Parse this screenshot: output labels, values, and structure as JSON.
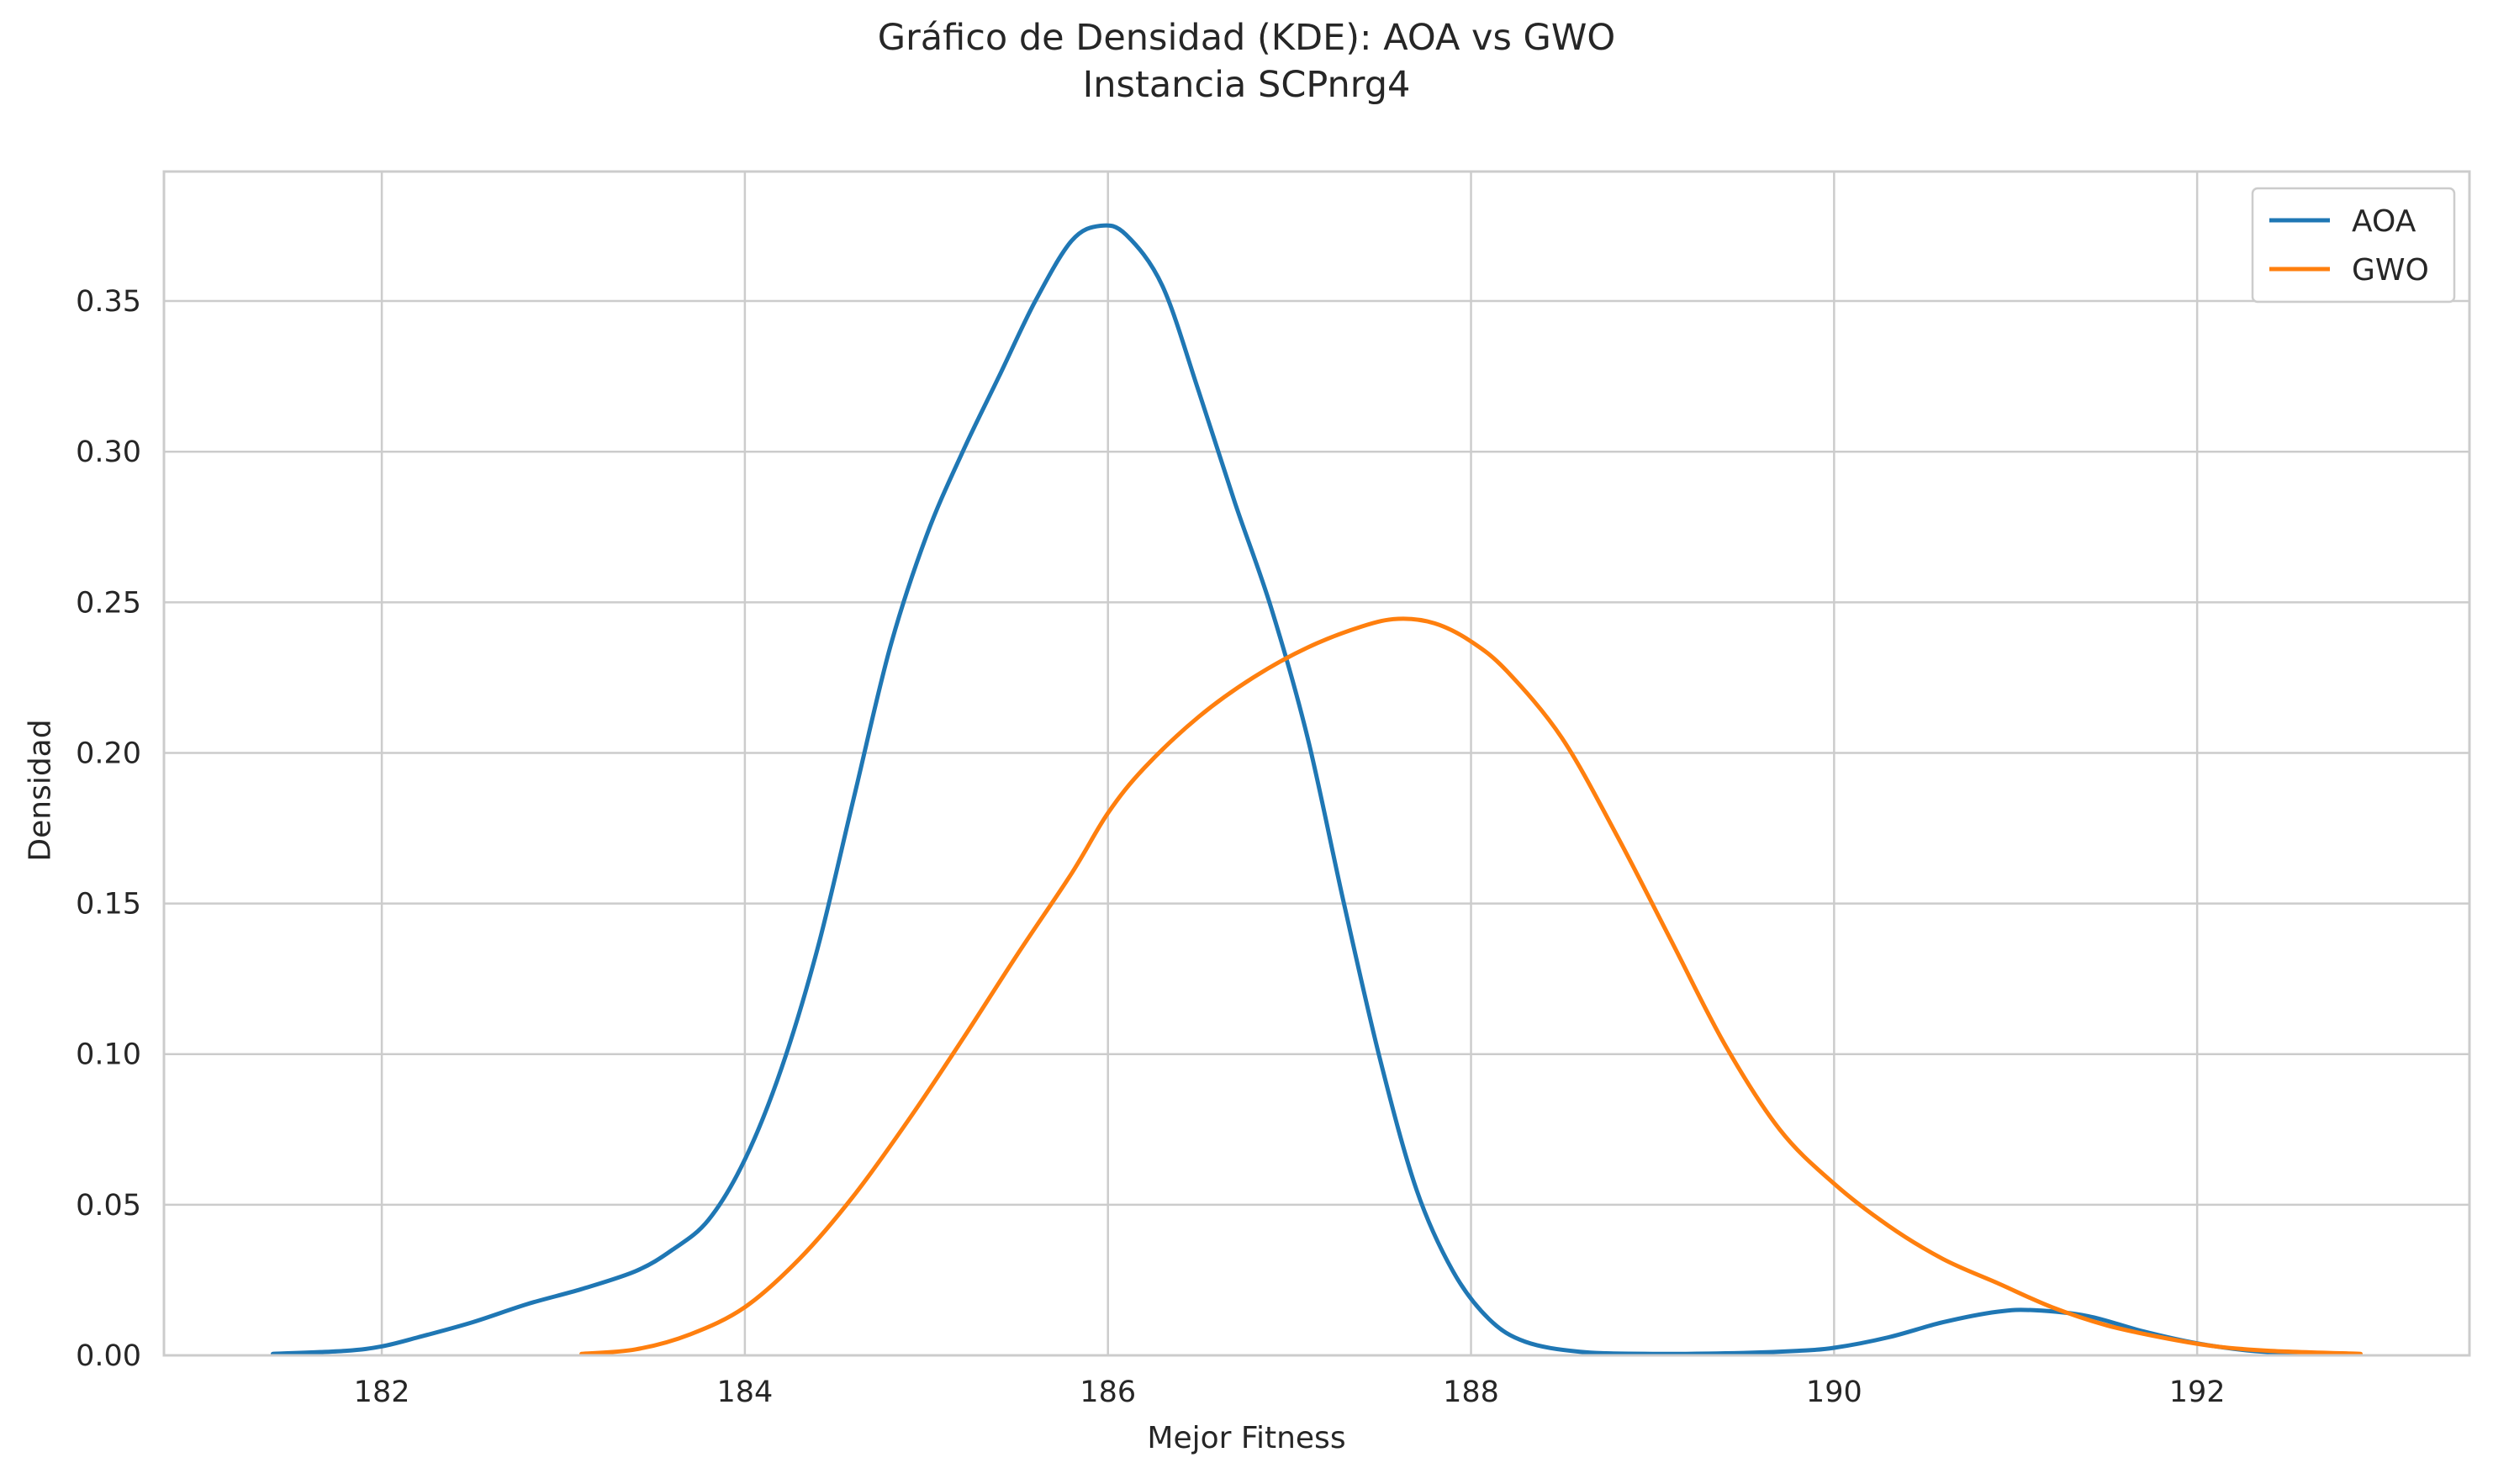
{
  "chart_data": {
    "type": "line",
    "title": "Gráfico de Densidad (KDE): AOA vs GWO",
    "subtitle": "Instancia SCPnrg4",
    "xlabel": "Mejor Fitness",
    "ylabel": "Densidad",
    "xlim": [
      180.8,
      193.5
    ],
    "ylim": [
      0.0,
      0.393
    ],
    "xticks": [
      182,
      184,
      186,
      188,
      190,
      192
    ],
    "xtick_labels": [
      "182",
      "184",
      "186",
      "188",
      "190",
      "192"
    ],
    "yticks": [
      0.0,
      0.05,
      0.1,
      0.15,
      0.2,
      0.25,
      0.3,
      0.35
    ],
    "ytick_labels": [
      "0.00",
      "0.05",
      "0.10",
      "0.15",
      "0.20",
      "0.25",
      "0.30",
      "0.35"
    ],
    "grid": true,
    "legend_position": "top-right",
    "series": [
      {
        "name": "AOA",
        "color": "#1f77b4",
        "points": [
          [
            181.4,
            0.0005
          ],
          [
            181.8,
            0.0015
          ],
          [
            182.0,
            0.003
          ],
          [
            182.2,
            0.006
          ],
          [
            182.5,
            0.011
          ],
          [
            182.8,
            0.017
          ],
          [
            183.1,
            0.022
          ],
          [
            183.4,
            0.028
          ],
          [
            183.6,
            0.035
          ],
          [
            183.8,
            0.045
          ],
          [
            184.0,
            0.065
          ],
          [
            184.2,
            0.095
          ],
          [
            184.4,
            0.135
          ],
          [
            184.6,
            0.185
          ],
          [
            184.8,
            0.235
          ],
          [
            185.0,
            0.272
          ],
          [
            185.2,
            0.3
          ],
          [
            185.4,
            0.325
          ],
          [
            185.6,
            0.35
          ],
          [
            185.8,
            0.37
          ],
          [
            185.96,
            0.375
          ],
          [
            186.1,
            0.372
          ],
          [
            186.3,
            0.355
          ],
          [
            186.5,
            0.32
          ],
          [
            186.7,
            0.283
          ],
          [
            186.9,
            0.248
          ],
          [
            187.1,
            0.205
          ],
          [
            187.3,
            0.15
          ],
          [
            187.5,
            0.098
          ],
          [
            187.7,
            0.055
          ],
          [
            187.9,
            0.028
          ],
          [
            188.1,
            0.012
          ],
          [
            188.3,
            0.0045
          ],
          [
            188.6,
            0.0012
          ],
          [
            189.0,
            0.0005
          ],
          [
            189.5,
            0.0008
          ],
          [
            189.8,
            0.0015
          ],
          [
            190.0,
            0.0025
          ],
          [
            190.3,
            0.006
          ],
          [
            190.6,
            0.011
          ],
          [
            190.9,
            0.0145
          ],
          [
            191.1,
            0.015
          ],
          [
            191.4,
            0.013
          ],
          [
            191.7,
            0.008
          ],
          [
            192.0,
            0.004
          ],
          [
            192.3,
            0.0015
          ],
          [
            192.6,
            0.0005
          ]
        ]
      },
      {
        "name": "GWO",
        "color": "#ff7f0e",
        "points": [
          [
            183.1,
            0.0005
          ],
          [
            183.4,
            0.002
          ],
          [
            183.7,
            0.007
          ],
          [
            184.0,
            0.016
          ],
          [
            184.3,
            0.032
          ],
          [
            184.6,
            0.053
          ],
          [
            184.9,
            0.078
          ],
          [
            185.2,
            0.105
          ],
          [
            185.5,
            0.133
          ],
          [
            185.8,
            0.16
          ],
          [
            186.0,
            0.18
          ],
          [
            186.2,
            0.195
          ],
          [
            186.5,
            0.212
          ],
          [
            186.8,
            0.225
          ],
          [
            187.1,
            0.235
          ],
          [
            187.4,
            0.242
          ],
          [
            187.6,
            0.2445
          ],
          [
            187.8,
            0.243
          ],
          [
            188.0,
            0.237
          ],
          [
            188.2,
            0.227
          ],
          [
            188.5,
            0.205
          ],
          [
            188.8,
            0.173
          ],
          [
            189.1,
            0.138
          ],
          [
            189.4,
            0.103
          ],
          [
            189.7,
            0.075
          ],
          [
            190.0,
            0.057
          ],
          [
            190.3,
            0.043
          ],
          [
            190.6,
            0.032
          ],
          [
            190.9,
            0.024
          ],
          [
            191.2,
            0.016
          ],
          [
            191.5,
            0.01
          ],
          [
            191.8,
            0.006
          ],
          [
            192.1,
            0.003
          ],
          [
            192.4,
            0.0015
          ],
          [
            192.9,
            0.0005
          ]
        ]
      }
    ]
  }
}
